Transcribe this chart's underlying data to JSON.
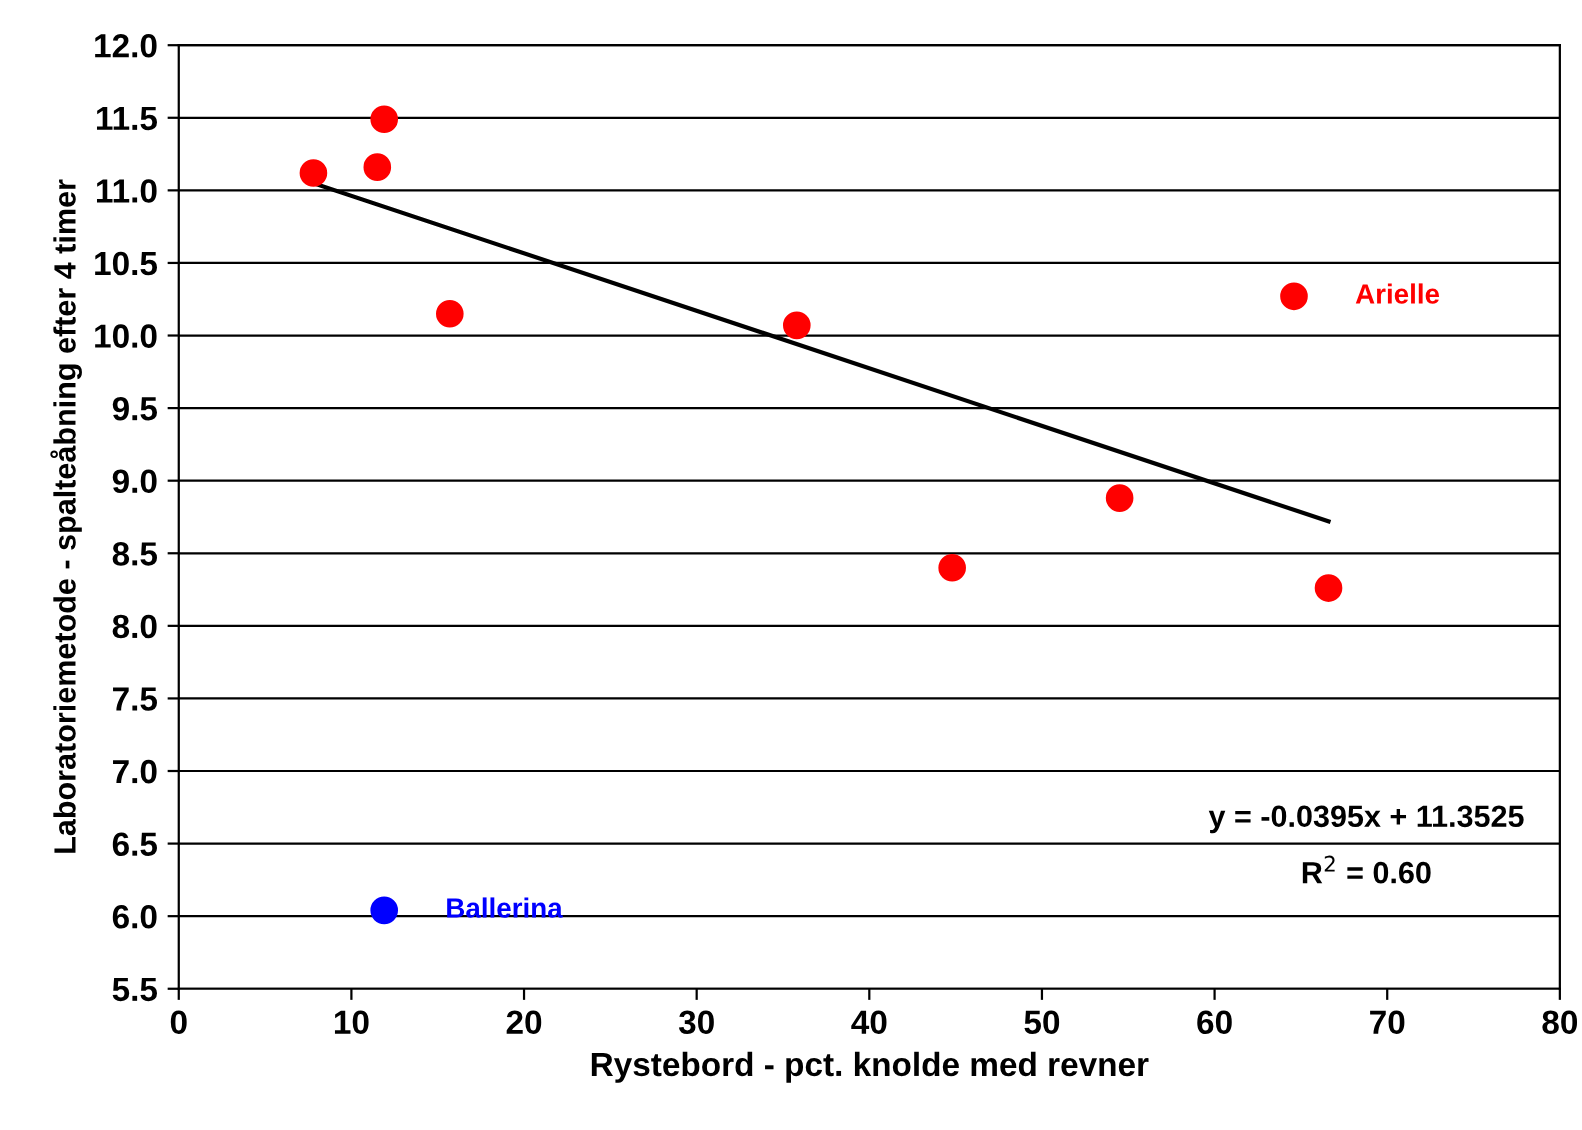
{
  "chart_data": {
    "type": "scatter",
    "xlabel": "Rystebord - pct. knolde med revner",
    "ylabel": "Laboratoriemetode - spalteåbning efter 4 timer",
    "xlim": [
      0,
      80
    ],
    "xticks": [
      0,
      10,
      20,
      30,
      40,
      50,
      60,
      70,
      80
    ],
    "ylim": [
      5.5,
      12.0
    ],
    "yticks": [
      {
        "value": 5.5,
        "label": "5.5"
      },
      {
        "value": 6.0,
        "label": "6.0"
      },
      {
        "value": 6.5,
        "label": "6.5"
      },
      {
        "value": 7.0,
        "label": "7.0"
      },
      {
        "value": 7.5,
        "label": "7.5"
      },
      {
        "value": 8.0,
        "label": "8.0"
      },
      {
        "value": 8.5,
        "label": "8.5"
      },
      {
        "value": 9.0,
        "label": "9.0"
      },
      {
        "value": 9.5,
        "label": "9.5"
      },
      {
        "value": 10.0,
        "label": "10.0"
      },
      {
        "value": 10.5,
        "label": "10.5"
      },
      {
        "value": 11.0,
        "label": "11.0"
      },
      {
        "value": 11.5,
        "label": "11.5"
      },
      {
        "value": 12.0,
        "label": "12.0"
      }
    ],
    "grid": "y",
    "legend": false,
    "marker": "circle",
    "series": [
      {
        "color": "#ff0000",
        "x": [
          7.8,
          11.9,
          11.5,
          15.7,
          35.8,
          44.8,
          54.5,
          64.6,
          66.6
        ],
        "values": [
          11.12,
          11.49,
          11.16,
          10.15,
          10.07,
          8.4,
          8.88,
          10.27,
          8.26
        ]
      },
      {
        "color": "#0000ff",
        "x": [
          11.9
        ],
        "values": [
          6.04
        ]
      },
      {
        "type": "line",
        "marker": "none",
        "color": "#000000",
        "x": [
          7.8,
          66.6
        ],
        "values": [
          11.05,
          8.72
        ]
      }
    ],
    "annotations": [
      {
        "text": "Arielle",
        "x": 64.6,
        "y": 10.27
      },
      {
        "text": "Ballerina",
        "x": 11.9,
        "y": 6.04
      },
      "y = -0.0395x + 11.3525",
      "R$^{2}$ = 0.60"
    ]
  }
}
